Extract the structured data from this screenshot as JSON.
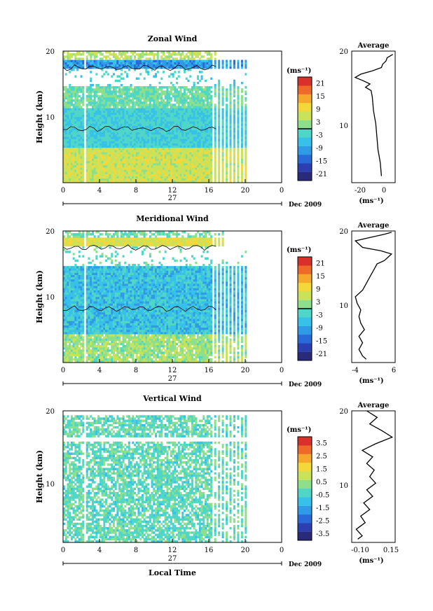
{
  "figure": {
    "x_axis_title": "Local Time",
    "date_day": "27",
    "date_month_year": "Dec 2009",
    "y_axis_title": "Height (km)",
    "unit_label": "(ms⁻¹)"
  },
  "chart_data": [
    {
      "type": "heatmap",
      "title": "Zonal Wind",
      "xlabel": "Local Time",
      "ylabel": "Height (km)",
      "xlim": [
        0,
        24
      ],
      "ylim": [
        0,
        20
      ],
      "x_ticks": [
        "0",
        "4",
        "8",
        "12",
        "16",
        "20",
        "0"
      ],
      "y_ticks": [
        "10",
        "20"
      ],
      "colorbar": {
        "unit": "(ms⁻¹)",
        "ticks": [
          "21",
          "15",
          "9",
          "3",
          "-3",
          "-9",
          "-15",
          "-21"
        ],
        "range": [
          -24,
          24
        ]
      },
      "avg": {
        "title": "Average",
        "xlabel": "(ms⁻¹)",
        "x_ticks": [
          "-20",
          "0"
        ],
        "xlim": [
          -28,
          10
        ],
        "profile": [
          [
            -2,
            1
          ],
          [
            -2.5,
            2
          ],
          [
            -3,
            3
          ],
          [
            -4,
            4
          ],
          [
            -5,
            5
          ],
          [
            -5.5,
            6
          ],
          [
            -6,
            7
          ],
          [
            -6.5,
            8
          ],
          [
            -7,
            9
          ],
          [
            -8,
            10
          ],
          [
            -9,
            11
          ],
          [
            -9.5,
            12
          ],
          [
            -10,
            13
          ],
          [
            -11,
            14
          ],
          [
            -16,
            14.5
          ],
          [
            -12,
            15
          ],
          [
            -18,
            15.5
          ],
          [
            -25,
            16
          ],
          [
            -20,
            16.5
          ],
          [
            -10,
            17
          ],
          [
            -2,
            17.5
          ],
          [
            -1,
            18
          ],
          [
            2,
            18.5
          ],
          [
            3,
            19
          ],
          [
            8,
            19.5
          ]
        ]
      }
    },
    {
      "type": "heatmap",
      "title": "Meridional Wind",
      "xlabel": "Local Time",
      "ylabel": "Height (km)",
      "xlim": [
        0,
        24
      ],
      "ylim": [
        0,
        20
      ],
      "x_ticks": [
        "0",
        "4",
        "8",
        "12",
        "16",
        "20",
        "0"
      ],
      "y_ticks": [
        "10",
        "20"
      ],
      "colorbar": {
        "unit": "(ms⁻¹)",
        "ticks": [
          "21",
          "15",
          "9",
          "3",
          "-3",
          "-9",
          "-15",
          "-21"
        ],
        "range": [
          -24,
          24
        ]
      },
      "avg": {
        "title": "Average",
        "xlabel": "(ms⁻¹)",
        "x_ticks": [
          "-4",
          "6"
        ],
        "xlim": [
          -5,
          7
        ],
        "profile": [
          [
            -1,
            0.5
          ],
          [
            -2,
            1
          ],
          [
            -3,
            2
          ],
          [
            -2,
            3
          ],
          [
            -3,
            4
          ],
          [
            -1.5,
            5
          ],
          [
            -2.5,
            6
          ],
          [
            -3,
            7
          ],
          [
            -2.5,
            8
          ],
          [
            -3.5,
            9
          ],
          [
            -4,
            10
          ],
          [
            -2,
            11
          ],
          [
            -1,
            12
          ],
          [
            0,
            13
          ],
          [
            1,
            14
          ],
          [
            2,
            15
          ],
          [
            4,
            15.5
          ],
          [
            6,
            16.5
          ],
          [
            3,
            17
          ],
          [
            -2,
            17.5
          ],
          [
            -4,
            18.5
          ],
          [
            0,
            19
          ],
          [
            4,
            19.5
          ],
          [
            6,
            19.8
          ]
        ]
      }
    },
    {
      "type": "heatmap",
      "title": "Vertical Wind",
      "xlabel": "Local Time",
      "ylabel": "Height (km)",
      "xlim": [
        0,
        24
      ],
      "ylim": [
        0,
        20
      ],
      "x_ticks": [
        "0",
        "4",
        "8",
        "12",
        "16",
        "20",
        "0"
      ],
      "y_ticks": [
        "10",
        "20"
      ],
      "colorbar": {
        "unit": "(ms⁻¹)",
        "ticks": [
          "3.5",
          "2.5",
          "1.5",
          "0.5",
          "-0.5",
          "-1.5",
          "-2.5",
          "-3.5"
        ],
        "range": [
          -4,
          4
        ]
      },
      "avg": {
        "title": "Average",
        "xlabel": "(ms⁻¹)",
        "x_ticks": [
          "-0.10",
          "0.15"
        ],
        "xlim": [
          -0.12,
          0.17
        ],
        "profile": [
          [
            -0.08,
            0.5
          ],
          [
            -0.05,
            1
          ],
          [
            -0.09,
            2
          ],
          [
            -0.03,
            3
          ],
          [
            -0.06,
            4
          ],
          [
            0.0,
            5
          ],
          [
            -0.04,
            6
          ],
          [
            0.02,
            7
          ],
          [
            -0.02,
            8
          ],
          [
            0.04,
            9
          ],
          [
            0.0,
            10
          ],
          [
            0.03,
            11
          ],
          [
            -0.02,
            12
          ],
          [
            0.02,
            13
          ],
          [
            -0.05,
            14
          ],
          [
            0.04,
            15
          ],
          [
            0.15,
            16
          ],
          [
            0.08,
            17
          ],
          [
            0.0,
            18
          ],
          [
            0.05,
            19
          ],
          [
            -0.02,
            20
          ]
        ]
      }
    }
  ]
}
